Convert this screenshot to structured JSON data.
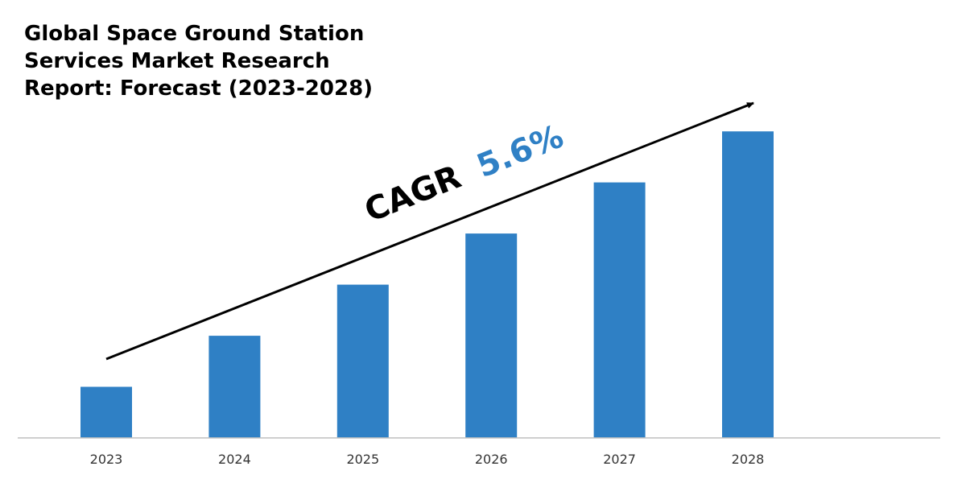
{
  "chart_data": {
    "type": "bar",
    "title": "Global Space Ground Station Services Market Research Report: Forecast (2023-2028)",
    "title_lines": [
      "Global Space Ground Station",
      "Services Market Research",
      "Report: Forecast (2023-2028)"
    ],
    "categories": [
      "2023",
      "2024",
      "2025",
      "2026",
      "2027",
      "2028"
    ],
    "values": [
      1,
      2,
      3,
      4,
      5,
      6
    ],
    "ylim": [
      0,
      6.05
    ],
    "xlabel": "",
    "ylabel": "",
    "grid": false,
    "legend": "none",
    "y_axis_visible": false,
    "annotation": {
      "prefix": "CAGR",
      "value": "5.6%"
    }
  },
  "colors": {
    "bar": "#2f80c5",
    "annotation_value": "#2f80c5",
    "annotation_prefix": "#000000",
    "axis": "#bfbfbf",
    "arrow": "#000000"
  }
}
